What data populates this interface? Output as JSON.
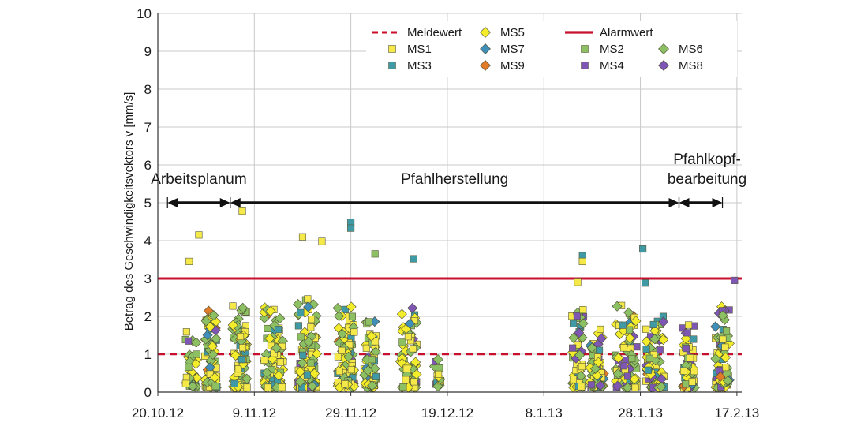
{
  "chart_data": {
    "type": "scatter",
    "ylabel": "Betrag des Geschwindigkeitsvektors v [mm/s]",
    "ylim": [
      0,
      10
    ],
    "yticks": [
      "0",
      "1",
      "2",
      "3",
      "4",
      "5",
      "6",
      "7",
      "8",
      "9",
      "10"
    ],
    "x_start": "2012-10-20",
    "xlim_days": [
      0,
      121
    ],
    "xticks": [
      {
        "label": "20.10.12",
        "day": 0
      },
      {
        "label": "9.11.12",
        "day": 20
      },
      {
        "label": "29.11.12",
        "day": 40
      },
      {
        "label": "19.12.12",
        "day": 60
      },
      {
        "label": "8.1.13",
        "day": 80
      },
      {
        "label": "28.1.13",
        "day": 100
      },
      {
        "label": "17.2.13",
        "day": 120
      }
    ],
    "grid": true,
    "reference_lines": [
      {
        "name": "Meldewert",
        "value": 1,
        "color": "#c8102e",
        "style": "dashed"
      },
      {
        "name": "Alarmwert",
        "value": 3,
        "color": "#c8102e",
        "style": "solid"
      }
    ],
    "series": [
      {
        "name": "MS1",
        "marker": "square",
        "color": "#f5e94a"
      },
      {
        "name": "MS2",
        "marker": "square",
        "color": "#8cc063"
      },
      {
        "name": "MS3",
        "marker": "square",
        "color": "#3f9aa6"
      },
      {
        "name": "MS4",
        "marker": "square",
        "color": "#7e57b5"
      },
      {
        "name": "MS5",
        "marker": "diamond",
        "color": "#f2ec2a"
      },
      {
        "name": "MS6",
        "marker": "diamond",
        "color": "#8cc063"
      },
      {
        "name": "MS7",
        "marker": "diamond",
        "color": "#3f8fb8"
      },
      {
        "name": "MS8",
        "marker": "diamond",
        "color": "#7e57b5"
      },
      {
        "name": "MS9",
        "marker": "diamond",
        "color": "#e07b2a"
      }
    ],
    "clusters": [
      {
        "day": 7,
        "width": 2.5,
        "max": 1.6,
        "n": 35
      },
      {
        "day": 11,
        "width": 2.5,
        "max": 2.2,
        "n": 70
      },
      {
        "day": 17,
        "width": 3,
        "max": 2.3,
        "n": 90
      },
      {
        "day": 24,
        "width": 4,
        "max": 2.3,
        "n": 90
      },
      {
        "day": 31,
        "width": 4,
        "max": 2.5,
        "n": 100
      },
      {
        "day": 39,
        "width": 3.5,
        "max": 2.3,
        "n": 95
      },
      {
        "day": 44,
        "width": 2.5,
        "max": 2.0,
        "n": 60
      },
      {
        "day": 52,
        "width": 3.5,
        "max": 2.3,
        "n": 65
      },
      {
        "day": 58,
        "width": 1.5,
        "max": 0.9,
        "n": 15
      },
      {
        "day": 87,
        "width": 2.5,
        "max": 2.3,
        "n": 60
      },
      {
        "day": 91,
        "width": 3,
        "max": 1.7,
        "n": 55
      },
      {
        "day": 97,
        "width": 4.5,
        "max": 2.3,
        "n": 80
      },
      {
        "day": 103,
        "width": 4,
        "max": 2.0,
        "n": 75
      },
      {
        "day": 110,
        "width": 2.5,
        "max": 1.9,
        "n": 55
      },
      {
        "day": 117,
        "width": 3,
        "max": 2.3,
        "n": 70
      }
    ],
    "outliers": [
      {
        "series": "MS1",
        "day": 6.5,
        "y": 3.45
      },
      {
        "series": "MS1",
        "day": 8.5,
        "y": 4.15
      },
      {
        "series": "MS1",
        "day": 17.5,
        "y": 4.78
      },
      {
        "series": "MS1",
        "day": 30,
        "y": 4.1
      },
      {
        "series": "MS1",
        "day": 34,
        "y": 3.98
      },
      {
        "series": "MS3",
        "day": 40,
        "y": 4.48
      },
      {
        "series": "MS3",
        "day": 40,
        "y": 4.33
      },
      {
        "series": "MS2",
        "day": 45,
        "y": 3.65
      },
      {
        "series": "MS3",
        "day": 53,
        "y": 3.52
      },
      {
        "series": "MS3",
        "day": 88,
        "y": 3.6
      },
      {
        "series": "MS1",
        "day": 88,
        "y": 3.45
      },
      {
        "series": "MS3",
        "day": 100.5,
        "y": 3.78
      },
      {
        "series": "MS3",
        "day": 101,
        "y": 2.88
      },
      {
        "series": "MS4",
        "day": 119.5,
        "y": 2.95
      },
      {
        "series": "MS1",
        "day": 87,
        "y": 2.9
      }
    ],
    "phases": [
      {
        "label": "Arbeitsplanum",
        "from": 2,
        "to": 15
      },
      {
        "label": "Pfahlherstellung",
        "from": 15,
        "to": 108
      },
      {
        "label_line1": "Pfahlkopf-",
        "label_line2": "bearbeitung",
        "from": 108,
        "to": 117
      }
    ],
    "legend": {
      "placement": "top-right",
      "entries": [
        "Meldewert",
        "MS5",
        "Alarmwert",
        "MS1",
        "MS2",
        "MS6",
        "MS3",
        "MS7",
        "MS4",
        "MS8",
        "MS9"
      ]
    }
  }
}
